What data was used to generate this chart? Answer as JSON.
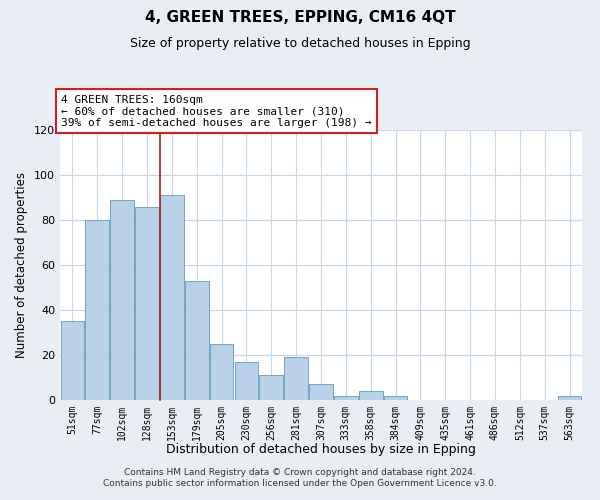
{
  "title": "4, GREEN TREES, EPPING, CM16 4QT",
  "subtitle": "Size of property relative to detached houses in Epping",
  "xlabel": "Distribution of detached houses by size in Epping",
  "ylabel": "Number of detached properties",
  "bar_labels": [
    "51sqm",
    "77sqm",
    "102sqm",
    "128sqm",
    "153sqm",
    "179sqm",
    "205sqm",
    "230sqm",
    "256sqm",
    "281sqm",
    "307sqm",
    "333sqm",
    "358sqm",
    "384sqm",
    "409sqm",
    "435sqm",
    "461sqm",
    "486sqm",
    "512sqm",
    "537sqm",
    "563sqm"
  ],
  "bar_values": [
    35,
    80,
    89,
    86,
    91,
    53,
    25,
    17,
    11,
    19,
    7,
    2,
    4,
    2,
    0,
    0,
    0,
    0,
    0,
    0,
    2
  ],
  "bar_color": "#b8d0e8",
  "bar_edge_color": "#6699bb",
  "highlight_bar_index": 4,
  "highlight_color": "#aa2222",
  "annotation_line1": "4 GREEN TREES: 160sqm",
  "annotation_line2": "← 60% of detached houses are smaller (310)",
  "annotation_line3": "39% of semi-detached houses are larger (198) →",
  "annotation_box_color": "#ffffff",
  "annotation_box_edge_color": "#cc2222",
  "ylim": [
    0,
    120
  ],
  "yticks": [
    0,
    20,
    40,
    60,
    80,
    100,
    120
  ],
  "footer_line1": "Contains HM Land Registry data © Crown copyright and database right 2024.",
  "footer_line2": "Contains public sector information licensed under the Open Government Licence v3.0.",
  "background_color": "#e8eef4",
  "plot_background_color": "#ffffff",
  "grid_color": "#c8d8e8"
}
